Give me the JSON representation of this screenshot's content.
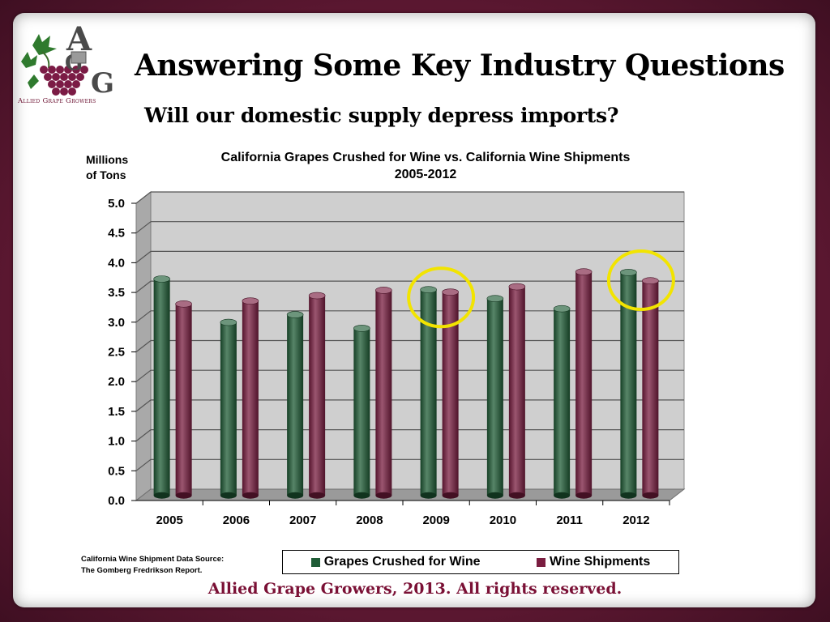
{
  "logo": {
    "name": "Allied Grape Growers",
    "letters": "AGG"
  },
  "slide": {
    "title": "Answering Some Key Industry Questions",
    "subtitle": "Will our domestic supply depress imports?"
  },
  "source_note": {
    "line1": "California Wine Shipment Data Source:",
    "line2": "The Gomberg Fredrikson Report."
  },
  "footer": "Allied Grape Growers, 2013.  All rights reserved.",
  "chart_data": {
    "type": "bar",
    "title": "California Grapes Crushed for Wine vs. California Wine Shipments",
    "subtitle": "2005-2012",
    "ylabel_line1": "Millions",
    "ylabel_line2": "of Tons",
    "xlabel": "",
    "ylim": [
      0,
      5.0
    ],
    "yticks": [
      "0.0",
      "0.5",
      "1.0",
      "1.5",
      "2.0",
      "2.5",
      "3.0",
      "3.5",
      "4.0",
      "4.5",
      "5.0"
    ],
    "categories": [
      "2005",
      "2006",
      "2007",
      "2008",
      "2009",
      "2010",
      "2011",
      "2012"
    ],
    "series": [
      {
        "name": "Grapes Crushed for Wine",
        "color": "#1f5c36",
        "values": [
          3.65,
          2.92,
          3.05,
          2.82,
          3.47,
          3.32,
          3.15,
          3.76
        ]
      },
      {
        "name": "Wine Shipments",
        "color": "#7a1d40",
        "values": [
          3.23,
          3.28,
          3.37,
          3.46,
          3.43,
          3.52,
          3.77,
          3.62
        ]
      }
    ],
    "grid": true,
    "legend": "bottom",
    "highlighted_categories": [
      "2009",
      "2012"
    ],
    "highlight_color": "#f2e400"
  }
}
